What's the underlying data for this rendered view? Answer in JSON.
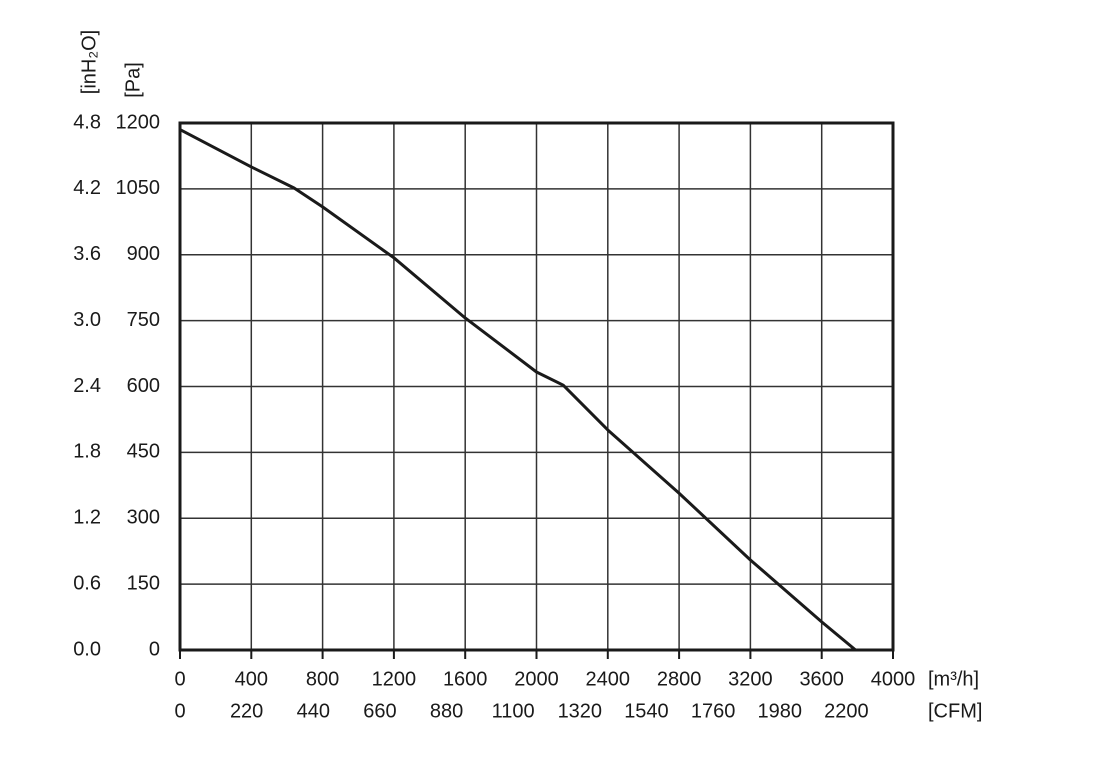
{
  "chart_data": {
    "type": "line",
    "x": [
      0,
      400,
      640,
      800,
      1200,
      1600,
      2000,
      2150,
      2400,
      2800,
      3200,
      3600,
      3790
    ],
    "series": [
      {
        "color": "#1a1a1a",
        "values": [
          1185,
          1100,
          1052,
          1009,
          893,
          756,
          633,
          603,
          501,
          357,
          205,
          64,
          0
        ]
      }
    ],
    "xlim": [
      0,
      4000
    ],
    "xticks": [
      0,
      400,
      800,
      1200,
      1600,
      2000,
      2400,
      2800,
      3200,
      3600,
      4000
    ],
    "xlabel": "[m³/h]",
    "x2lim": [
      0,
      2354
    ],
    "x2ticks": [
      0,
      220,
      440,
      660,
      880,
      1100,
      1320,
      1540,
      1760,
      1980,
      2200
    ],
    "x2label": "[CFM]",
    "ylim": [
      0,
      1200
    ],
    "yticks": [
      0,
      150,
      300,
      450,
      600,
      750,
      900,
      1050,
      1200
    ],
    "ylabel": "[Pa]",
    "y2lim": [
      0,
      4.8
    ],
    "y2ticks": [
      {
        "value": 0,
        "label": "0.0"
      },
      0.6,
      1.2,
      1.8,
      2.4,
      {
        "value": 3,
        "label": "3.0"
      },
      3.6,
      4.2,
      4.8
    ],
    "y2label": "[inH₂O]",
    "grid": true
  }
}
